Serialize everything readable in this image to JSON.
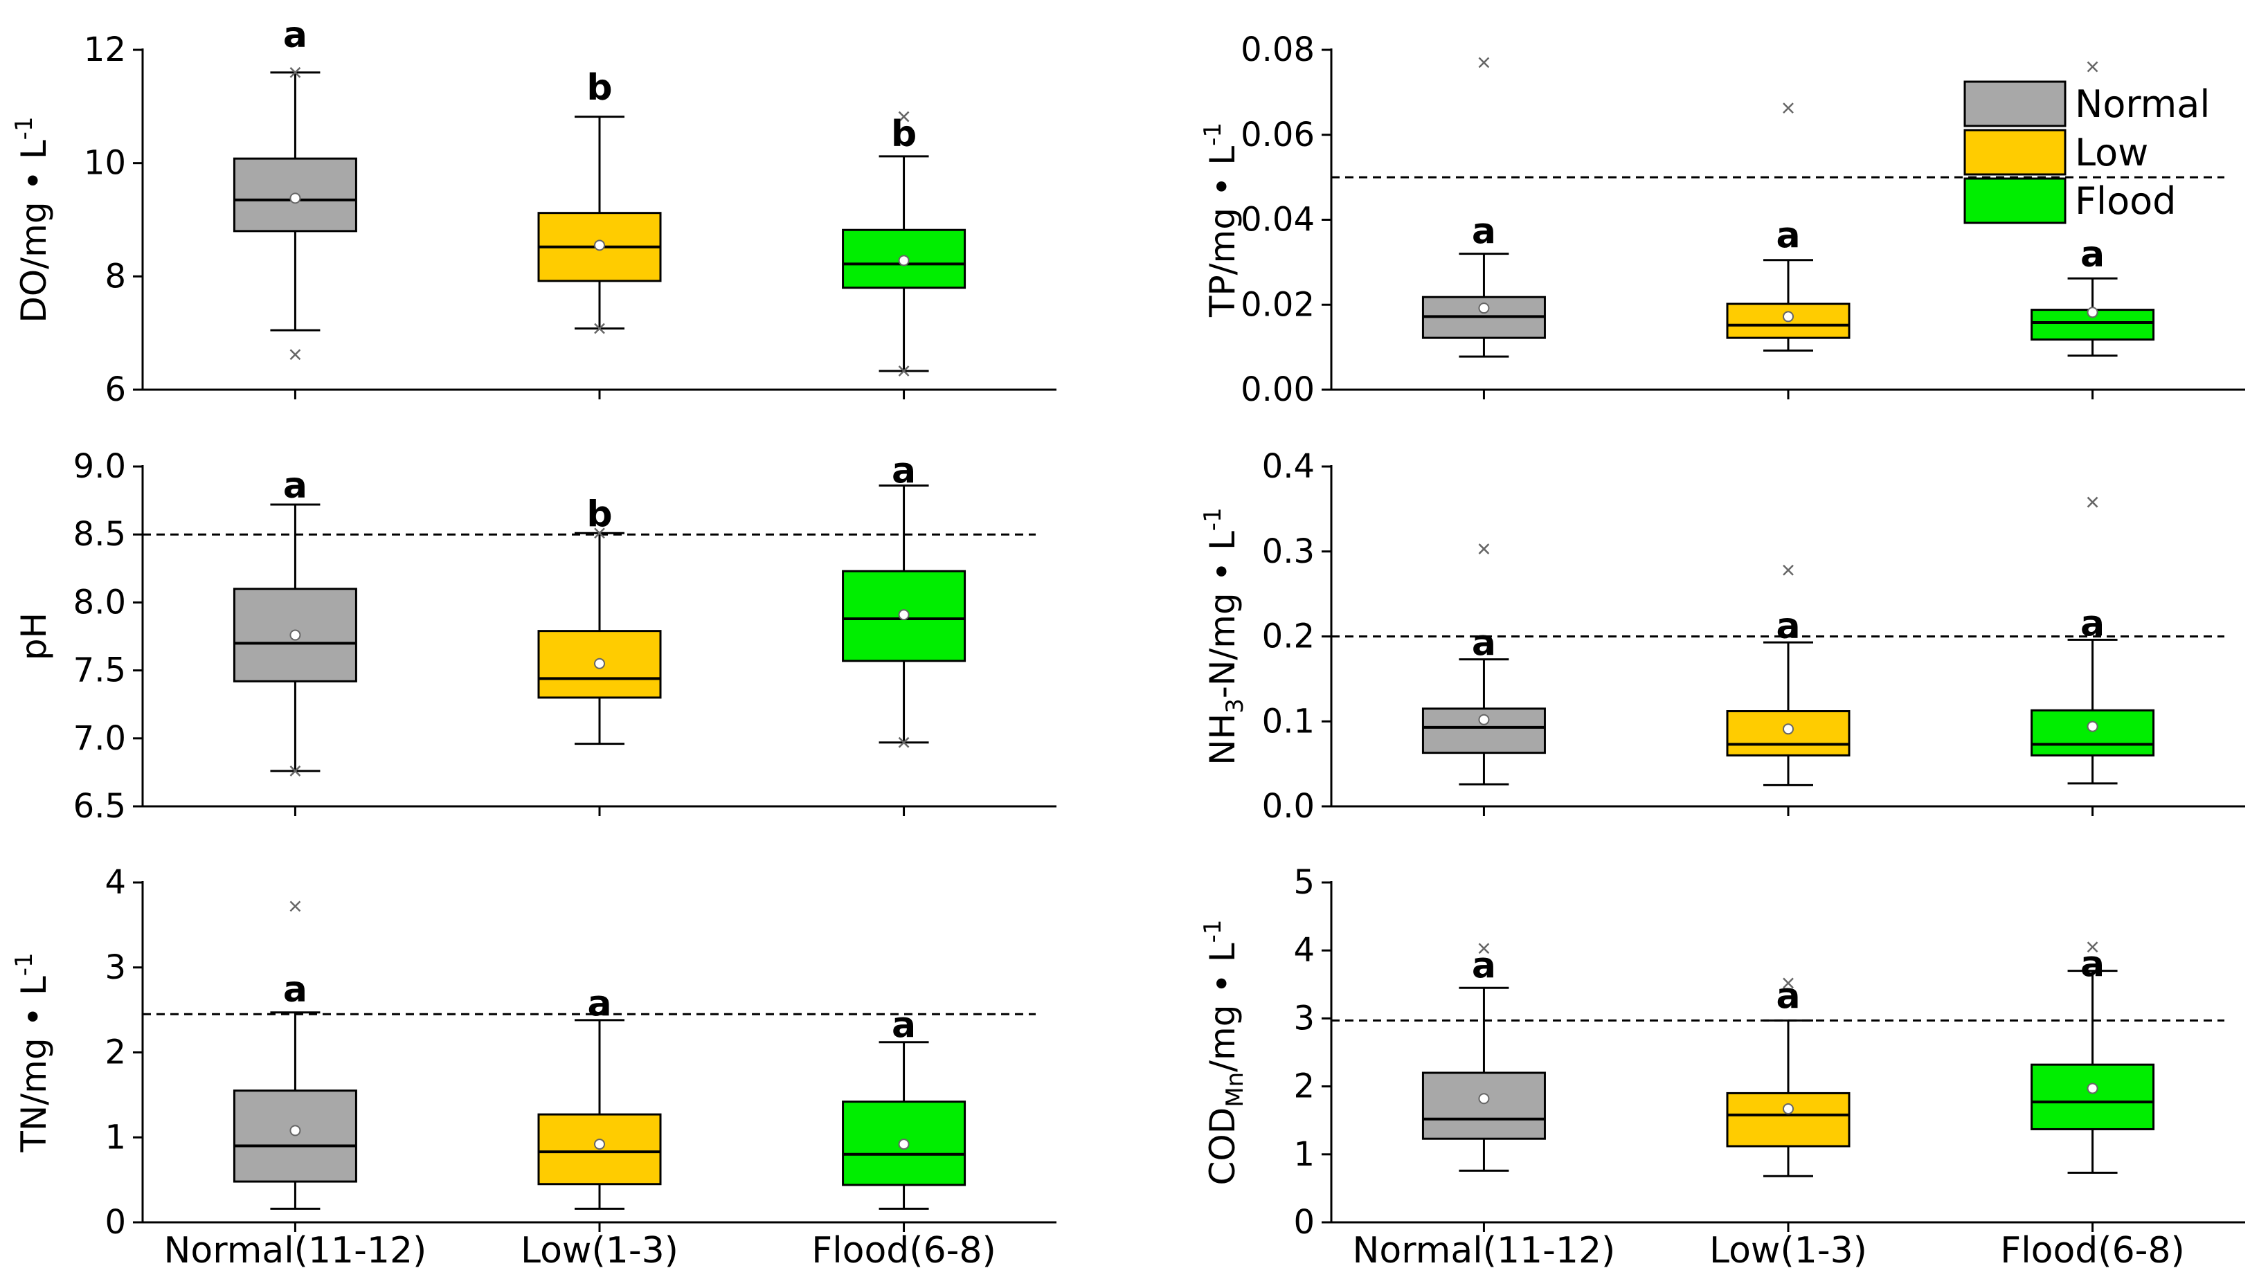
{
  "colors": {
    "Normal": "#a8a8a8",
    "Low": "#ffcc00",
    "Flood": "#00ee00",
    "line": "#000000"
  },
  "legend": [
    {
      "name": "Normal",
      "color": "#a8a8a8"
    },
    {
      "name": "Low",
      "color": "#ffcc00"
    },
    {
      "name": "Flood",
      "color": "#00ee00"
    }
  ],
  "chart_data": [
    {
      "type": "box",
      "panel": "top-left",
      "ylabel": {
        "main": "DO/mg • L",
        "sub": "",
        "after": "",
        "sup": "-1"
      },
      "ylim": [
        6,
        12
      ],
      "yticks": [
        "6",
        "8",
        "10",
        "12"
      ],
      "categories": [
        "Normal(11-12)",
        "Low(1-3)",
        "Flood(6-8)"
      ],
      "show_xlabels": false,
      "threshold": null,
      "series": [
        {
          "name": "Normal",
          "whisker_low": 7.05,
          "q1": 8.8,
          "median": 9.35,
          "q3": 10.08,
          "whisker_high": 11.6,
          "mean": 9.38,
          "outliers": [
            6.62,
            11.6
          ],
          "sig": "a",
          "sig_y": 12.05
        },
        {
          "name": "Low",
          "whisker_low": 7.08,
          "q1": 7.92,
          "median": 8.52,
          "q3": 9.12,
          "whisker_high": 10.82,
          "mean": 8.55,
          "outliers": [
            7.08
          ],
          "sig": "b",
          "sig_y": 11.12
        },
        {
          "name": "Flood",
          "whisker_low": 6.33,
          "q1": 7.8,
          "median": 8.22,
          "q3": 8.82,
          "whisker_high": 10.12,
          "mean": 8.28,
          "outliers": [
            10.82,
            6.33
          ],
          "sig": "b",
          "sig_y": 10.3
        }
      ]
    },
    {
      "type": "box",
      "panel": "top-right",
      "ylabel": {
        "main": "TP/mg • L",
        "sub": "",
        "after": "",
        "sup": "-1"
      },
      "ylim": [
        0,
        0.08
      ],
      "yticks": [
        "0.00",
        "0.02",
        "0.04",
        "0.06",
        "0.08"
      ],
      "categories": [
        "Normal(11-12)",
        "Low(1-3)",
        "Flood(6-8)"
      ],
      "show_xlabels": false,
      "threshold": 0.05,
      "series": [
        {
          "name": "Normal",
          "whisker_low": 0.0078,
          "q1": 0.0122,
          "median": 0.0172,
          "q3": 0.0218,
          "whisker_high": 0.032,
          "mean": 0.0192,
          "outliers": [
            0.077
          ],
          "sig": "a",
          "sig_y": 0.0345
        },
        {
          "name": "Low",
          "whisker_low": 0.0092,
          "q1": 0.0122,
          "median": 0.0152,
          "q3": 0.0202,
          "whisker_high": 0.0305,
          "mean": 0.0172,
          "outliers": [
            0.0663
          ],
          "sig": "a",
          "sig_y": 0.0335
        },
        {
          "name": "Flood",
          "whisker_low": 0.008,
          "q1": 0.0118,
          "median": 0.0158,
          "q3": 0.0188,
          "whisker_high": 0.0262,
          "mean": 0.0182,
          "outliers": [
            0.076
          ],
          "sig": "a",
          "sig_y": 0.029
        }
      ]
    },
    {
      "type": "box",
      "panel": "middle-left",
      "ylabel": {
        "main": "pH",
        "sub": "",
        "after": "",
        "sup": ""
      },
      "ylim": [
        6.5,
        9.0
      ],
      "yticks": [
        "6.5",
        "7.0",
        "7.5",
        "8.0",
        "8.5",
        "9.0"
      ],
      "categories": [
        "Normal(11-12)",
        "Low(1-3)",
        "Flood(6-8)"
      ],
      "show_xlabels": false,
      "threshold": 8.5,
      "series": [
        {
          "name": "Normal",
          "whisker_low": 6.76,
          "q1": 7.42,
          "median": 7.7,
          "q3": 8.1,
          "whisker_high": 8.72,
          "mean": 7.76,
          "outliers": [
            6.76
          ],
          "sig": "a",
          "sig_y": 8.77
        },
        {
          "name": "Low",
          "whisker_low": 6.96,
          "q1": 7.3,
          "median": 7.44,
          "q3": 7.79,
          "whisker_high": 8.51,
          "mean": 7.55,
          "outliers": [
            8.51
          ],
          "sig": "b",
          "sig_y": 8.56
        },
        {
          "name": "Flood",
          "whisker_low": 6.97,
          "q1": 7.57,
          "median": 7.88,
          "q3": 8.23,
          "whisker_high": 8.86,
          "mean": 7.91,
          "outliers": [
            6.97
          ],
          "sig": "a",
          "sig_y": 8.88
        }
      ]
    },
    {
      "type": "box",
      "panel": "middle-right",
      "ylabel": {
        "main": "NH",
        "sub": "3",
        "after": "-N/mg • L",
        "sup": "-1"
      },
      "ylim": [
        0,
        0.4
      ],
      "yticks": [
        "0.0",
        "0.1",
        "0.2",
        "0.3",
        "0.4"
      ],
      "categories": [
        "Normal(11-12)",
        "Low(1-3)",
        "Flood(6-8)"
      ],
      "show_xlabels": false,
      "threshold": 0.2,
      "series": [
        {
          "name": "Normal",
          "whisker_low": 0.026,
          "q1": 0.063,
          "median": 0.093,
          "q3": 0.115,
          "whisker_high": 0.173,
          "mean": 0.102,
          "outliers": [
            0.303
          ],
          "sig": "a",
          "sig_y": 0.178
        },
        {
          "name": "Low",
          "whisker_low": 0.025,
          "q1": 0.06,
          "median": 0.073,
          "q3": 0.112,
          "whisker_high": 0.193,
          "mean": 0.091,
          "outliers": [
            0.278
          ],
          "sig": "a",
          "sig_y": 0.198
        },
        {
          "name": "Flood",
          "whisker_low": 0.027,
          "q1": 0.06,
          "median": 0.073,
          "q3": 0.113,
          "whisker_high": 0.196,
          "mean": 0.094,
          "outliers": [
            0.358
          ],
          "sig": "a",
          "sig_y": 0.201
        }
      ]
    },
    {
      "type": "box",
      "panel": "bottom-left",
      "ylabel": {
        "main": "TN/mg • L",
        "sub": "",
        "after": "",
        "sup": "-1"
      },
      "ylim": [
        0,
        4
      ],
      "yticks": [
        "0",
        "1",
        "2",
        "3",
        "4"
      ],
      "categories": [
        "Normal(11-12)",
        "Low(1-3)",
        "Flood(6-8)"
      ],
      "show_xlabels": true,
      "threshold": 2.45,
      "series": [
        {
          "name": "Normal",
          "whisker_low": 0.16,
          "q1": 0.48,
          "median": 0.9,
          "q3": 1.55,
          "whisker_high": 2.47,
          "mean": 1.08,
          "outliers": [
            3.72
          ],
          "sig": "a",
          "sig_y": 2.6
        },
        {
          "name": "Low",
          "whisker_low": 0.16,
          "q1": 0.45,
          "median": 0.83,
          "q3": 1.27,
          "whisker_high": 2.38,
          "mean": 0.92,
          "outliers": [],
          "sig": "a",
          "sig_y": 2.43
        },
        {
          "name": "Flood",
          "whisker_low": 0.16,
          "q1": 0.44,
          "median": 0.8,
          "q3": 1.42,
          "whisker_high": 2.12,
          "mean": 0.92,
          "outliers": [],
          "sig": "a",
          "sig_y": 2.18
        }
      ]
    },
    {
      "type": "box",
      "panel": "bottom-right",
      "ylabel": {
        "main": "COD",
        "sub": "Mn",
        "after": "/mg • L",
        "sup": "-1"
      },
      "ylim": [
        0,
        5
      ],
      "yticks": [
        "0",
        "1",
        "2",
        "3",
        "4",
        "5"
      ],
      "categories": [
        "Normal(11-12)",
        "Low(1-3)",
        "Flood(6-8)"
      ],
      "show_xlabels": true,
      "threshold": 2.97,
      "series": [
        {
          "name": "Normal",
          "whisker_low": 0.76,
          "q1": 1.23,
          "median": 1.52,
          "q3": 2.2,
          "whisker_high": 3.45,
          "mean": 1.82,
          "outliers": [
            4.03
          ],
          "sig": "a",
          "sig_y": 3.6
        },
        {
          "name": "Low",
          "whisker_low": 0.68,
          "q1": 1.12,
          "median": 1.58,
          "q3": 1.9,
          "whisker_high": 2.97,
          "mean": 1.67,
          "outliers": [
            3.52
          ],
          "sig": "a",
          "sig_y": 3.15
        },
        {
          "name": "Flood",
          "whisker_low": 0.73,
          "q1": 1.37,
          "median": 1.77,
          "q3": 2.32,
          "whisker_high": 3.7,
          "mean": 1.97,
          "outliers": [
            4.05
          ],
          "sig": "a",
          "sig_y": 3.62
        }
      ]
    }
  ]
}
